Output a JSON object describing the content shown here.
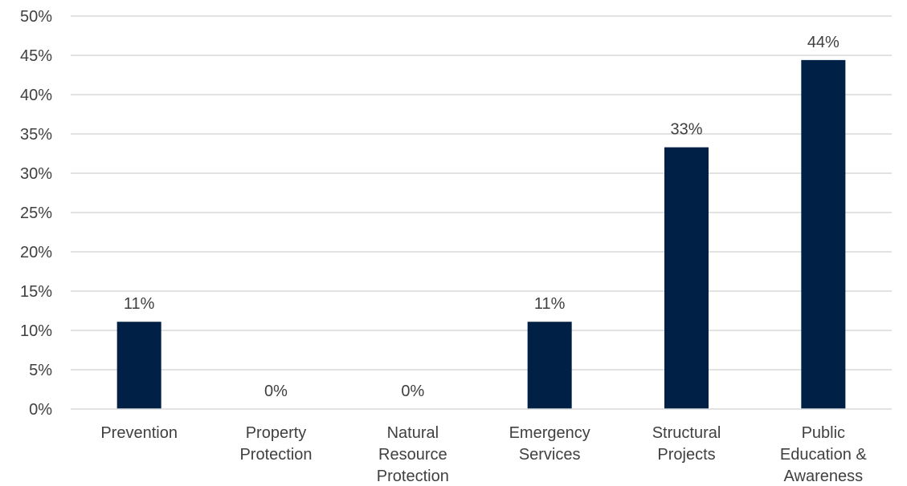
{
  "chart_data": {
    "type": "bar",
    "title": "",
    "xlabel": "",
    "ylabel": "",
    "categories": [
      [
        "Prevention"
      ],
      [
        "Property",
        "Protection"
      ],
      [
        "Natural",
        "Resource",
        "Protection"
      ],
      [
        "Emergency",
        "Services"
      ],
      [
        "Structural",
        "Projects"
      ],
      [
        "Public",
        "Education &",
        "Awareness"
      ]
    ],
    "values": [
      11.1,
      0,
      0,
      11.1,
      33.3,
      44.4
    ],
    "data_labels": [
      "11%",
      "0%",
      "0%",
      "11%",
      "33%",
      "44%"
    ],
    "ylim": [
      0,
      50
    ],
    "yticks": [
      0,
      5,
      10,
      15,
      20,
      25,
      30,
      35,
      40,
      45,
      50
    ],
    "ytick_labels": [
      "0%",
      "5%",
      "10%",
      "15%",
      "20%",
      "25%",
      "30%",
      "35%",
      "40%",
      "45%",
      "50%"
    ],
    "bar_color": "#002045",
    "grid": true,
    "legend": "none"
  }
}
